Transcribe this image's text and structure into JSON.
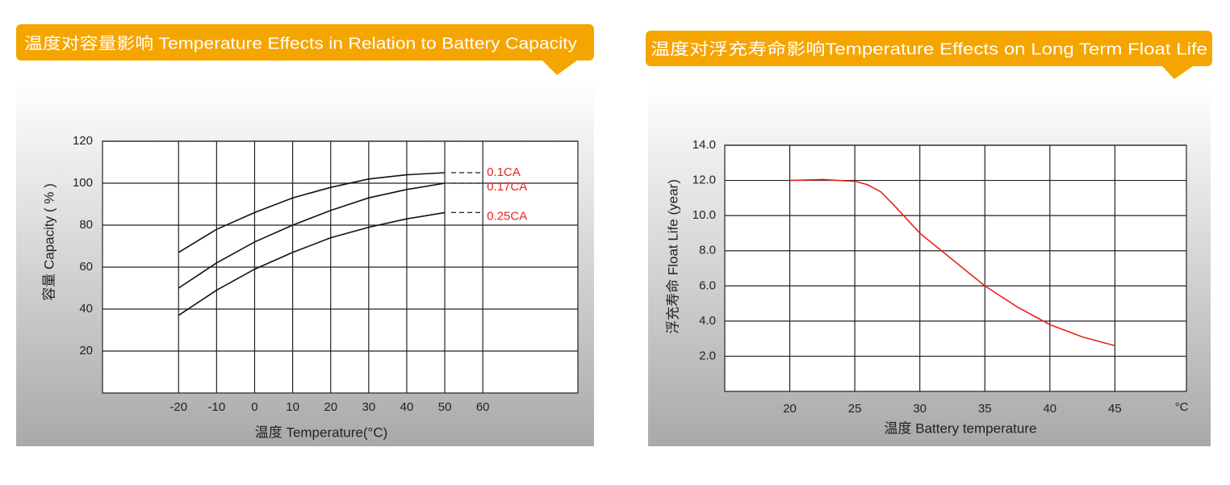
{
  "chart_data": [
    {
      "type": "line",
      "title": "温度对容量影响 Temperature Effects in Relation to Battery Capacity",
      "xlabel": "温度  Temperature(°C)",
      "ylabel": "容量 Capacity ( % )",
      "x": [
        -20,
        -10,
        0,
        10,
        20,
        30,
        40,
        50
      ],
      "series": [
        {
          "name": "0.1CA",
          "color": "#111111",
          "values": [
            67,
            78,
            86,
            93,
            98,
            102,
            104,
            105
          ]
        },
        {
          "name": "0.17CA",
          "color": "#111111",
          "values": [
            50,
            62,
            72,
            80,
            87,
            93,
            97,
            100
          ]
        },
        {
          "name": "0.25CA",
          "color": "#111111",
          "values": [
            37,
            49,
            59,
            67,
            74,
            79,
            83,
            86
          ]
        }
      ],
      "label_color": "#e8221b",
      "xlim": [
        -40,
        85
      ],
      "xticks": [
        -20,
        -10,
        0,
        10,
        20,
        30,
        40,
        50,
        60
      ],
      "ylim": [
        0,
        120
      ],
      "yticks": [
        20,
        40,
        60,
        80,
        100,
        120
      ],
      "grid": true
    },
    {
      "type": "line",
      "title": "温度对浮充寿命影响Temperature Effects on Long Term Float Life",
      "xlabel": "温度  Battery temperature",
      "ylabel": "浮充寿命  Float Life (year)",
      "x_unit": "°C",
      "x": [
        20,
        22.5,
        25,
        26,
        27,
        28,
        30,
        32.5,
        35,
        37.5,
        40,
        42.5,
        45
      ],
      "values": [
        12,
        12.05,
        11.95,
        11.75,
        11.35,
        10.6,
        9.0,
        7.5,
        6.0,
        4.8,
        3.8,
        3.1,
        2.6
      ],
      "color": "#e8221b",
      "xlim": [
        15,
        50.5
      ],
      "xticks": [
        20,
        25,
        30,
        35,
        40,
        45
      ],
      "ylim": [
        0,
        14
      ],
      "yticks": [
        {
          "value": 2,
          "label": "2.0"
        },
        {
          "value": 4,
          "label": "4.0"
        },
        {
          "value": 6,
          "label": "6.0"
        },
        {
          "value": 8,
          "label": "8.0"
        },
        {
          "value": 10,
          "label": "10.0"
        },
        {
          "value": 12,
          "label": "12.0"
        },
        {
          "value": 14,
          "label": "14.0"
        }
      ],
      "grid": true
    }
  ]
}
